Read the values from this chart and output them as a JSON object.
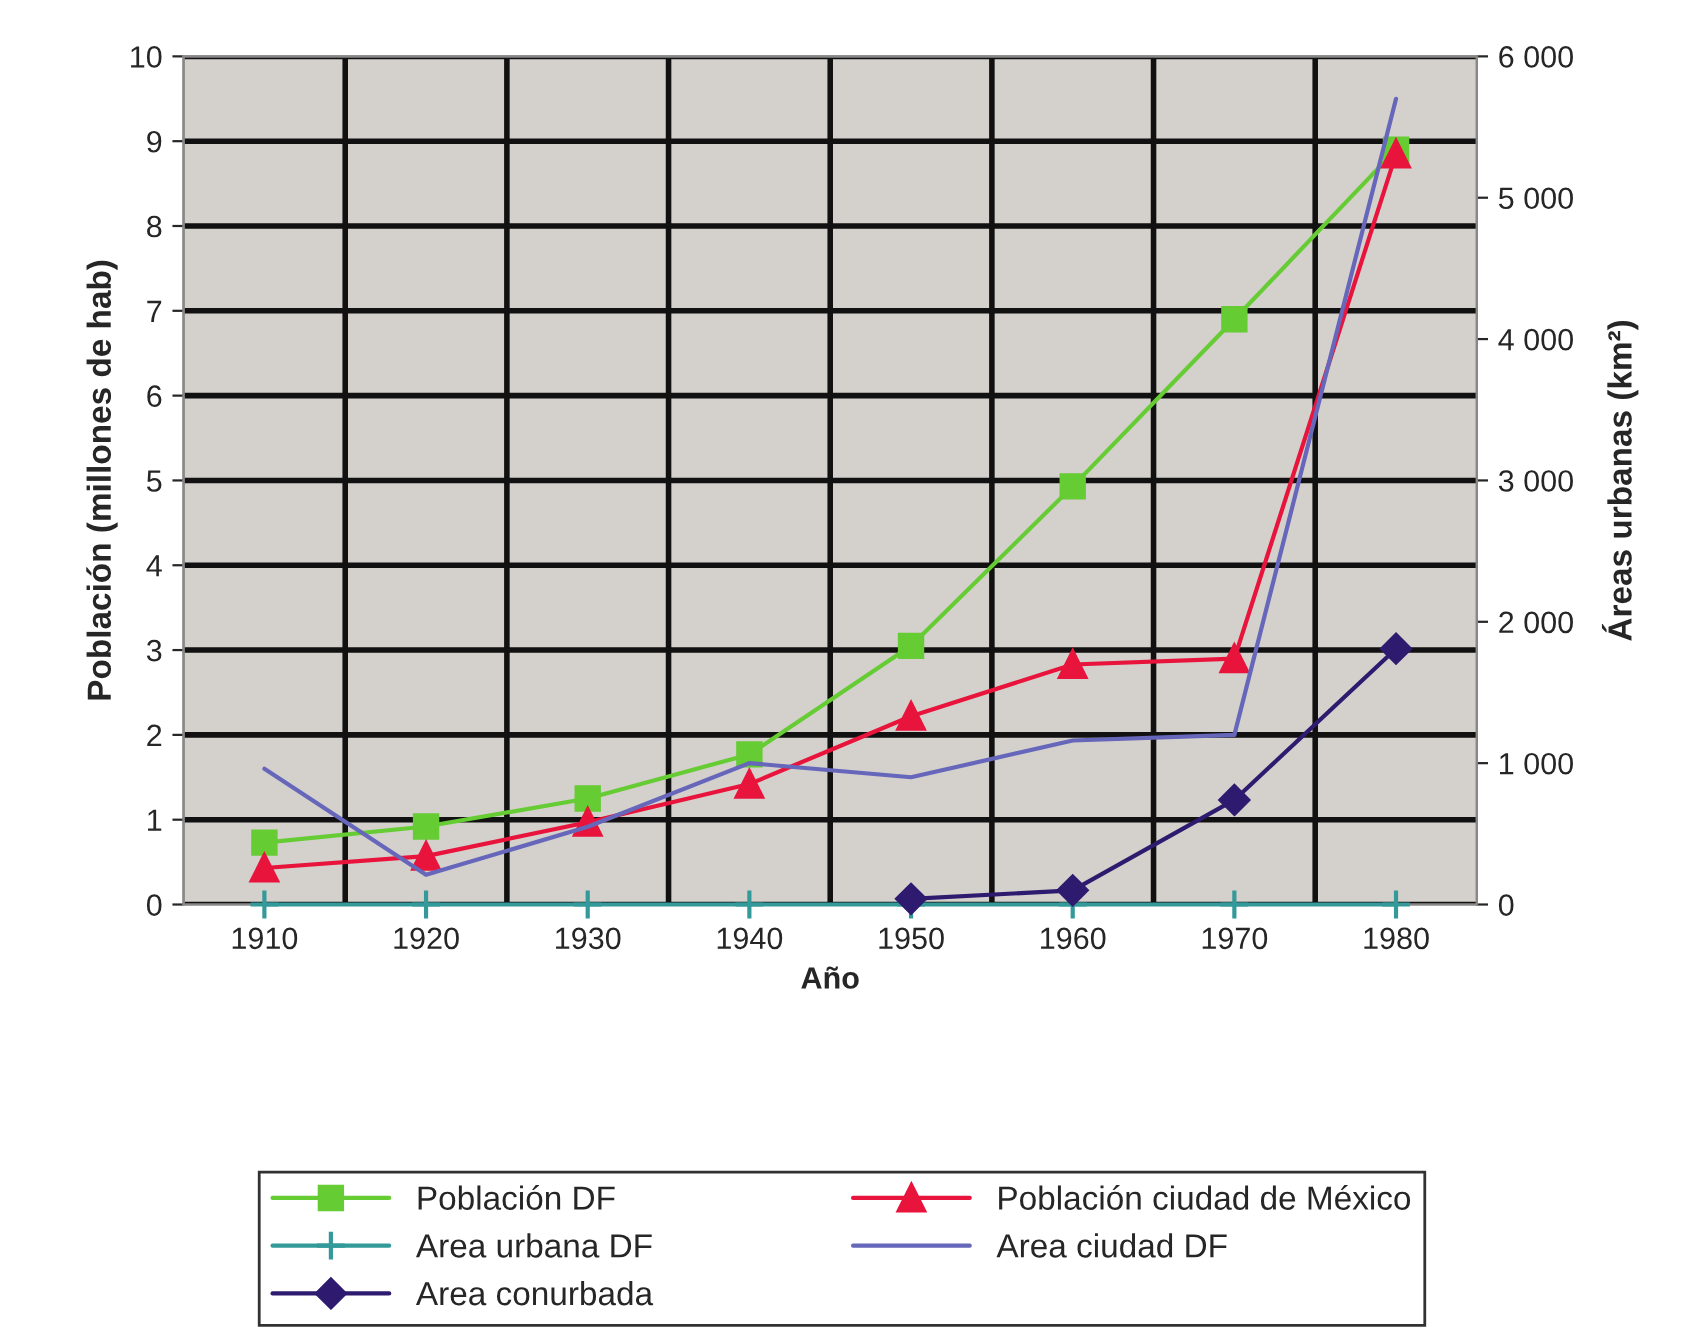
{
  "chart_data": {
    "type": "line",
    "xlabel": "Año",
    "ylabel": "Población (millones de hab)",
    "y2label": "Áreas urbanas (km²)",
    "categories": [
      "1910",
      "1920",
      "1930",
      "1940",
      "1950",
      "1960",
      "1970",
      "1980"
    ],
    "ylim": [
      0,
      10
    ],
    "yticks": [
      0,
      1,
      2,
      3,
      4,
      5,
      6,
      7,
      8,
      9,
      10
    ],
    "y2lim": [
      0,
      6000
    ],
    "y2ticks": [
      0,
      {
        "value": 1000,
        "label": "1 000"
      },
      {
        "value": 2000,
        "label": "2 000"
      },
      {
        "value": 3000,
        "label": "3 000"
      },
      {
        "value": 4000,
        "label": "4 000"
      },
      {
        "value": 5000,
        "label": "5 000"
      },
      {
        "value": 6000,
        "label": "6 000"
      }
    ],
    "grid": true,
    "legend": "bottom",
    "series": [
      {
        "name": "Población DF",
        "color": "#66cc33",
        "marker": "square",
        "values": [
          0.73,
          0.92,
          1.25,
          1.77,
          3.05,
          4.93,
          6.9,
          8.9
        ]
      },
      {
        "name": "Población ciudad de México",
        "color": "#e8143c",
        "marker": "triangle",
        "values": [
          0.43,
          0.57,
          0.97,
          1.42,
          2.22,
          2.83,
          2.9,
          8.85
        ]
      },
      {
        "name": "Area urbana DF",
        "color": "#339999",
        "marker": "cross",
        "axis": "y2",
        "values": [
          0,
          0,
          0,
          0,
          0,
          0,
          0,
          0
        ]
      },
      {
        "name": "Area ciudad DF",
        "color": "#6666bb",
        "marker": "none",
        "axis": "y2",
        "values": [
          960,
          210,
          550,
          1000,
          900,
          1160,
          1200,
          5700
        ]
      },
      {
        "name": "Area conurbada",
        "color": "#2e1a6e",
        "marker": "diamond",
        "axis": "y2",
        "values": [
          null,
          null,
          null,
          null,
          40,
          100,
          740,
          1810
        ]
      }
    ]
  }
}
